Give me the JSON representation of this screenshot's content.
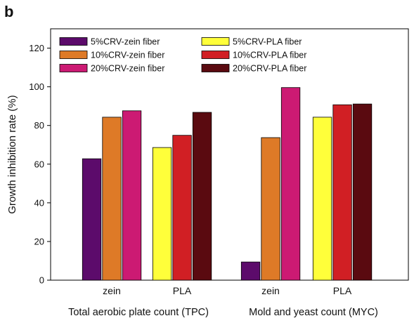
{
  "panel_label": "b",
  "chart_data": {
    "type": "bar",
    "ylabel": "Growth inhibition rate (%)",
    "ylim": [
      0,
      130
    ],
    "yticks": [
      0,
      20,
      40,
      60,
      80,
      100,
      120
    ],
    "grid": false,
    "legend_position": "top-left, two columns",
    "groups": [
      {
        "label": "Total aerobic plate count (TPC)",
        "categories": [
          "zein",
          "PLA"
        ]
      },
      {
        "label": "Mold and yeast count (MYC)",
        "categories": [
          "zein",
          "PLA"
        ]
      }
    ],
    "categories": [
      {
        "label": "zein",
        "group": "Total aerobic plate count (TPC)",
        "series": [
          {
            "name": "5%CRV-zein fiber",
            "value": 62.8,
            "color": "#5c0b6b"
          },
          {
            "name": "10%CRV-zein fiber",
            "value": 84.3,
            "color": "#de7a27"
          },
          {
            "name": "20%CRV-zein fiber",
            "value": 87.6,
            "color": "#cc1a73"
          }
        ]
      },
      {
        "label": "PLA",
        "group": "Total aerobic plate count (TPC)",
        "series": [
          {
            "name": "5%CRV-PLA fiber",
            "value": 68.6,
            "color": "#ffff3a"
          },
          {
            "name": "10%CRV-PLA fiber",
            "value": 74.9,
            "color": "#d11f24"
          },
          {
            "name": "20%CRV-PLA fiber",
            "value": 86.8,
            "color": "#5a0a10"
          }
        ]
      },
      {
        "label": "zein",
        "group": "Mold and yeast count (MYC)",
        "series": [
          {
            "name": "5%CRV-zein fiber",
            "value": 9.4,
            "color": "#5c0b6b"
          },
          {
            "name": "10%CRV-zein fiber",
            "value": 73.7,
            "color": "#de7a27"
          },
          {
            "name": "20%CRV-zein fiber",
            "value": 99.6,
            "color": "#cc1a73"
          }
        ]
      },
      {
        "label": "PLA",
        "group": "Mold and yeast count (MYC)",
        "series": [
          {
            "name": "5%CRV-PLA fiber",
            "value": 84.3,
            "color": "#ffff3a"
          },
          {
            "name": "10%CRV-PLA fiber",
            "value": 90.7,
            "color": "#d11f24"
          },
          {
            "name": "20%CRV-PLA fiber",
            "value": 91.1,
            "color": "#5a0a10"
          }
        ]
      }
    ],
    "legend": [
      {
        "name": "5%CRV-zein fiber",
        "color": "#5c0b6b"
      },
      {
        "name": "10%CRV-zein fiber",
        "color": "#de7a27"
      },
      {
        "name": "20%CRV-zein fiber",
        "color": "#cc1a73"
      },
      {
        "name": "5%CRV-PLA fiber",
        "color": "#ffff3a"
      },
      {
        "name": "10%CRV-PLA fiber",
        "color": "#d11f24"
      },
      {
        "name": "20%CRV-PLA fiber",
        "color": "#5a0a10"
      }
    ]
  }
}
